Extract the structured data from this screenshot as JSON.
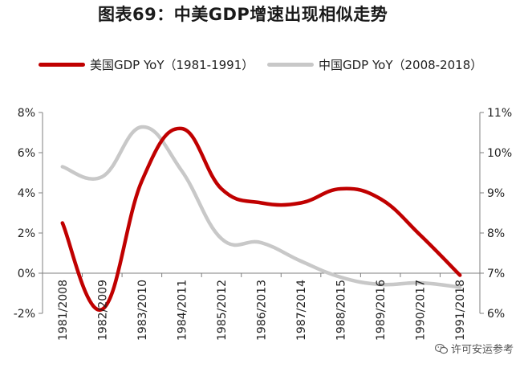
{
  "title": "图表69：中美GDP增速出现相似走势",
  "watermark": "许可安运参考",
  "colors": {
    "us": "#c00000",
    "china": "#c8c8c8",
    "axis": "#7f7f7f",
    "text": "#222222"
  },
  "chart_data": {
    "type": "line",
    "categories": [
      "1981/2008",
      "1982/2009",
      "1983/2010",
      "1984/2011",
      "1985/2012",
      "1986/2013",
      "1987/2014",
      "1988/2015",
      "1989/2016",
      "1990/2017",
      "1991/2018"
    ],
    "series": [
      {
        "name": "美国GDP YoY（1981-1991）",
        "axis": "left",
        "color": "#c00000",
        "values": [
          2.5,
          -1.8,
          4.6,
          7.2,
          4.2,
          3.5,
          3.5,
          4.2,
          3.7,
          1.9,
          -0.1
        ]
      },
      {
        "name": "中国GDP YoY（2008-2018）",
        "axis": "right",
        "color": "#c8c8c8",
        "values": [
          9.65,
          9.4,
          10.64,
          9.55,
          7.86,
          7.76,
          7.3,
          6.9,
          6.72,
          6.76,
          6.65
        ]
      }
    ],
    "left_axis": {
      "ylim": [
        -2,
        8
      ],
      "ticks": [
        "-2%",
        "0%",
        "2%",
        "4%",
        "6%",
        "8%"
      ],
      "tick_values": [
        -2,
        0,
        2,
        4,
        6,
        8
      ]
    },
    "right_axis": {
      "ylim": [
        6,
        11
      ],
      "ticks": [
        "6%",
        "7%",
        "8%",
        "9%",
        "10%",
        "11%"
      ],
      "tick_values": [
        6,
        7,
        8,
        9,
        10,
        11
      ]
    },
    "legend": "top",
    "grid": false
  }
}
